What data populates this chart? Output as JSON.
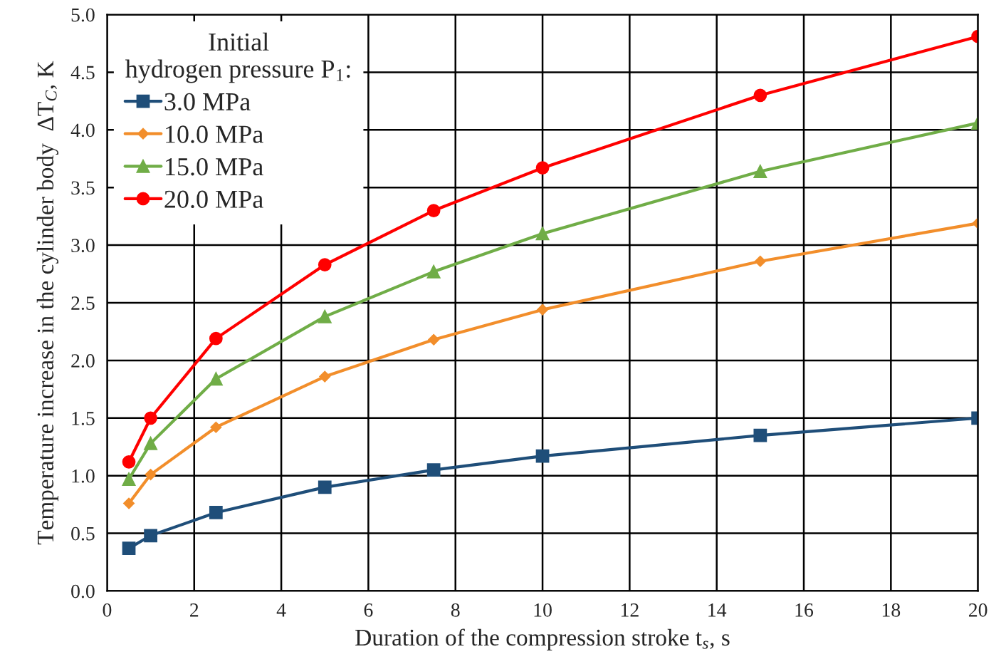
{
  "chart_data": {
    "type": "line",
    "xlabel": "Duration of the compression stroke t$_{s}$, s",
    "ylabel": "Temperature increase in the cylinder body  ΔT$_{C}$, K",
    "legend_title": "Initial\nhydrogen pressure P$_{1}$:",
    "x": [
      0.5,
      1,
      2.5,
      5,
      7.5,
      10,
      15,
      20
    ],
    "series": [
      {
        "name": "3.0 MPa",
        "color": "#1f4e79",
        "marker": "square",
        "values": [
          0.37,
          0.48,
          0.68,
          0.9,
          1.05,
          1.17,
          1.35,
          1.5
        ]
      },
      {
        "name": "10.0 MPa",
        "color": "#f28e2b",
        "marker": "diamond",
        "values": [
          0.76,
          1.01,
          1.42,
          1.86,
          2.18,
          2.44,
          2.86,
          3.19
        ]
      },
      {
        "name": "15.0 MPa",
        "color": "#70ad47",
        "marker": "triangle",
        "values": [
          0.97,
          1.28,
          1.84,
          2.38,
          2.77,
          3.1,
          3.64,
          4.06
        ]
      },
      {
        "name": "20.0 MPa",
        "color": "#ff0000",
        "marker": "circle",
        "values": [
          1.12,
          1.5,
          2.19,
          2.83,
          3.3,
          3.67,
          4.3,
          4.81
        ]
      }
    ],
    "xlim": [
      0,
      20
    ],
    "xticks": [
      0,
      2,
      4,
      6,
      8,
      10,
      12,
      14,
      16,
      18,
      20
    ],
    "ylim": [
      0,
      5
    ],
    "yticks": [
      {
        "value": 0,
        "label": "0.0"
      },
      {
        "value": 0.5,
        "label": "0.5"
      },
      {
        "value": 1,
        "label": "1.0"
      },
      {
        "value": 1.5,
        "label": "1.5"
      },
      {
        "value": 2,
        "label": "2.0"
      },
      {
        "value": 2.5,
        "label": "2.5"
      },
      {
        "value": 3,
        "label": "3.0"
      },
      {
        "value": 3.5,
        "label": "3.5"
      },
      {
        "value": 4,
        "label": "4.0"
      },
      {
        "value": 4.5,
        "label": "4.5"
      },
      {
        "value": 5,
        "label": "5.0"
      }
    ],
    "grid": true,
    "legend": "top left",
    "line_style": "solid"
  }
}
